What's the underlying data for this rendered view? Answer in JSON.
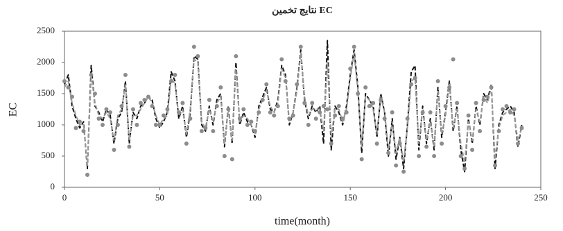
{
  "chart_data": {
    "type": "line",
    "title": "نتایج تخمین EC",
    "x_label": "time(month)",
    "y_label": "EC",
    "xlim": [
      0,
      250
    ],
    "xticks": [
      0,
      50,
      100,
      150,
      200,
      250
    ],
    "ylim": [
      0,
      2500
    ],
    "yticks": [
      0,
      500,
      1000,
      1500,
      2000,
      2500
    ],
    "x": [
      0,
      2,
      4,
      6,
      8,
      10,
      12,
      14,
      16,
      18,
      20,
      22,
      24,
      26,
      28,
      30,
      32,
      34,
      36,
      38,
      40,
      42,
      44,
      46,
      48,
      50,
      52,
      54,
      56,
      58,
      60,
      62,
      64,
      66,
      68,
      70,
      72,
      74,
      76,
      78,
      80,
      82,
      84,
      86,
      88,
      90,
      92,
      94,
      96,
      98,
      100,
      102,
      104,
      106,
      108,
      110,
      112,
      114,
      116,
      118,
      120,
      122,
      124,
      126,
      128,
      130,
      132,
      134,
      136,
      138,
      140,
      142,
      144,
      146,
      148,
      150,
      152,
      154,
      156,
      158,
      160,
      162,
      164,
      166,
      168,
      170,
      172,
      174,
      176,
      178,
      180,
      182,
      184,
      186,
      188,
      190,
      192,
      194,
      196,
      198,
      200,
      202,
      204,
      206,
      208,
      210,
      212,
      214,
      216,
      218,
      220,
      222,
      224,
      226,
      228,
      230,
      232,
      234,
      236,
      238,
      240
    ],
    "series": [
      {
        "color": "#111111",
        "style": "dashed-line",
        "values": [
          1650,
          1800,
          1300,
          1100,
          950,
          1050,
          300,
          1950,
          1300,
          1200,
          1050,
          1250,
          1150,
          700,
          1100,
          1200,
          1700,
          700,
          1200,
          1100,
          1300,
          1350,
          1450,
          1400,
          1100,
          950,
          1050,
          1200,
          1850,
          1700,
          1100,
          1300,
          800,
          1200,
          2100,
          2050,
          1000,
          900,
          1300,
          1000,
          1400,
          1500,
          650,
          1300,
          700,
          2000,
          1000,
          1200,
          1050,
          1000,
          800,
          1300,
          1450,
          1600,
          1250,
          1200,
          1400,
          1950,
          1800,
          1000,
          1200,
          1600,
          2200,
          1400,
          1100,
          1300,
          1200,
          1300,
          700,
          2350,
          600,
          1300,
          1200,
          1000,
          1300,
          1800,
          2200,
          1600,
          550,
          1500,
          1400,
          1300,
          800,
          1500,
          1200,
          500,
          1100,
          450,
          800,
          300,
          1000,
          1850,
          1950,
          600,
          1300,
          700,
          1100,
          600,
          1600,
          800,
          1200,
          1700,
          900,
          1300,
          600,
          250,
          1100,
          700,
          1300,
          1000,
          1500,
          1400,
          1650,
          300,
          1000,
          1200,
          1250,
          1300,
          1200,
          650,
          1000
        ]
      },
      {
        "color": "#9a9a9a",
        "style": "dashed-line",
        "values": [
          1600,
          1700,
          1350,
          1150,
          1000,
          1000,
          350,
          1800,
          1350,
          1150,
          1100,
          1200,
          1100,
          750,
          1150,
          1250,
          1650,
          750,
          1150,
          1150,
          1250,
          1350,
          1450,
          1350,
          1150,
          1000,
          1100,
          1150,
          1750,
          1650,
          1150,
          1250,
          850,
          1250,
          2050,
          2000,
          1050,
          950,
          1250,
          1050,
          1350,
          1450,
          700,
          1250,
          750,
          1900,
          1050,
          1150,
          1100,
          1000,
          850,
          1250,
          1400,
          1550,
          1300,
          1200,
          1350,
          1900,
          1750,
          1050,
          1200,
          1550,
          2150,
          1450,
          1150,
          1250,
          1250,
          1250,
          900,
          2000,
          800,
          1250,
          1250,
          1050,
          1250,
          1750,
          2150,
          1550,
          650,
          1450,
          1400,
          1250,
          850,
          1450,
          1200,
          600,
          1050,
          550,
          800,
          400,
          950,
          1700,
          1750,
          700,
          1250,
          750,
          1050,
          650,
          1550,
          850,
          1150,
          1650,
          950,
          1250,
          700,
          400,
          1050,
          750,
          1250,
          1050,
          1450,
          1350,
          1600,
          450,
          950,
          1150,
          1200,
          1250,
          1150,
          750,
          950
        ]
      },
      {
        "color": "#8c8c8c",
        "style": "dots",
        "values": [
          1700,
          1600,
          1450,
          950,
          1050,
          900,
          200,
          1800,
          1500,
          1100,
          1000,
          1250,
          1200,
          600,
          1000,
          1300,
          1800,
          650,
          1250,
          1000,
          1350,
          1400,
          1450,
          1300,
          1000,
          1000,
          1150,
          1250,
          1700,
          1800,
          1200,
          1350,
          700,
          1100,
          2250,
          2100,
          900,
          950,
          1400,
          900,
          1300,
          1600,
          500,
          1250,
          450,
          2100,
          1100,
          1250,
          1000,
          1050,
          900,
          1200,
          1400,
          1650,
          1200,
          1150,
          1300,
          2050,
          1700,
          1100,
          1150,
          1650,
          2250,
          1350,
          1000,
          1350,
          1100,
          1200,
          1300,
          1250,
          700,
          1150,
          1300,
          1100,
          1200,
          1900,
          2250,
          1500,
          450,
          1600,
          1300,
          1350,
          700,
          1400,
          1100,
          550,
          1200,
          350,
          700,
          250,
          1100,
          1650,
          1750,
          500,
          1200,
          650,
          1200,
          500,
          1700,
          700,
          1300,
          1600,
          2050,
          1350,
          500,
          300,
          1150,
          600,
          1350,
          900,
          1400,
          1450,
          1600,
          350,
          900,
          1250,
          1300,
          1200,
          1250,
          700,
          950
        ]
      }
    ]
  }
}
